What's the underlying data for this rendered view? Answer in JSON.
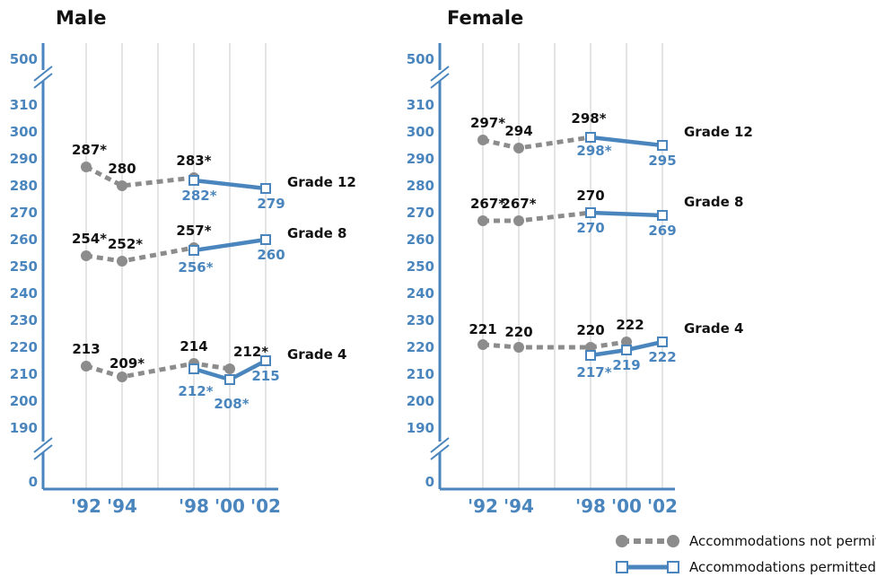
{
  "chart_data": [
    {
      "type": "line",
      "title": "Male",
      "x": [
        "'92",
        "'94",
        "'98",
        "'00",
        "'02"
      ],
      "y_ticks": [
        "500",
        "310",
        "300",
        "290",
        "280",
        "270",
        "260",
        "250",
        "240",
        "230",
        "220",
        "210",
        "200",
        "190",
        "0"
      ],
      "ylim": [
        190,
        310
      ],
      "axis_break": true,
      "grid": "vertical",
      "series": [
        {
          "group": "Grade 12",
          "kind": "not_permitted",
          "points": [
            {
              "x": "'92",
              "y": 287,
              "label": "287*"
            },
            {
              "x": "'94",
              "y": 280,
              "label": "280"
            },
            {
              "x": "'98",
              "y": 283,
              "label": "283*"
            }
          ]
        },
        {
          "group": "Grade 12",
          "kind": "permitted",
          "points": [
            {
              "x": "'98",
              "y": 282,
              "label": "282*"
            },
            {
              "x": "'02",
              "y": 279,
              "label": "279"
            }
          ]
        },
        {
          "group": "Grade 8",
          "kind": "not_permitted",
          "points": [
            {
              "x": "'92",
              "y": 254,
              "label": "254*"
            },
            {
              "x": "'94",
              "y": 252,
              "label": "252*"
            },
            {
              "x": "'98",
              "y": 257,
              "label": "257*"
            }
          ]
        },
        {
          "group": "Grade 8",
          "kind": "permitted",
          "points": [
            {
              "x": "'98",
              "y": 256,
              "label": "256*"
            },
            {
              "x": "'02",
              "y": 260,
              "label": "260"
            }
          ]
        },
        {
          "group": "Grade 4",
          "kind": "not_permitted",
          "points": [
            {
              "x": "'92",
              "y": 213,
              "label": "213"
            },
            {
              "x": "'94",
              "y": 209,
              "label": "209*"
            },
            {
              "x": "'98",
              "y": 214,
              "label": "214"
            },
            {
              "x": "'00",
              "y": 212,
              "label": "212*"
            }
          ]
        },
        {
          "group": "Grade 4",
          "kind": "permitted",
          "points": [
            {
              "x": "'98",
              "y": 212,
              "label": "212*"
            },
            {
              "x": "'00",
              "y": 208,
              "label": "208*"
            },
            {
              "x": "'02",
              "y": 215,
              "label": "215"
            }
          ]
        }
      ],
      "group_labels": [
        "Grade 12",
        "Grade 8",
        "Grade 4"
      ]
    },
    {
      "type": "line",
      "title": "Female",
      "x": [
        "'92",
        "'94",
        "'98",
        "'00",
        "'02"
      ],
      "y_ticks": [
        "500",
        "310",
        "300",
        "290",
        "280",
        "270",
        "260",
        "250",
        "240",
        "230",
        "220",
        "210",
        "200",
        "190",
        "0"
      ],
      "ylim": [
        190,
        310
      ],
      "axis_break": true,
      "grid": "vertical",
      "series": [
        {
          "group": "Grade 12",
          "kind": "not_permitted",
          "points": [
            {
              "x": "'92",
              "y": 297,
              "label": "297*"
            },
            {
              "x": "'94",
              "y": 294,
              "label": "294"
            },
            {
              "x": "'98",
              "y": 298,
              "label": "298*"
            }
          ]
        },
        {
          "group": "Grade 12",
          "kind": "permitted",
          "points": [
            {
              "x": "'98",
              "y": 298,
              "label": "298*"
            },
            {
              "x": "'02",
              "y": 295,
              "label": "295"
            }
          ]
        },
        {
          "group": "Grade 8",
          "kind": "not_permitted",
          "points": [
            {
              "x": "'92",
              "y": 267,
              "label": "267*"
            },
            {
              "x": "'94",
              "y": 267,
              "label": "267*"
            },
            {
              "x": "'98",
              "y": 270,
              "label": "270"
            }
          ]
        },
        {
          "group": "Grade 8",
          "kind": "permitted",
          "points": [
            {
              "x": "'98",
              "y": 270,
              "label": "270"
            },
            {
              "x": "'02",
              "y": 269,
              "label": "269"
            }
          ]
        },
        {
          "group": "Grade 4",
          "kind": "not_permitted",
          "points": [
            {
              "x": "'92",
              "y": 221,
              "label": "221"
            },
            {
              "x": "'94",
              "y": 220,
              "label": "220"
            },
            {
              "x": "'98",
              "y": 220,
              "label": "220"
            },
            {
              "x": "'00",
              "y": 222,
              "label": "222"
            }
          ]
        },
        {
          "group": "Grade 4",
          "kind": "permitted",
          "points": [
            {
              "x": "'98",
              "y": 217,
              "label": "217*"
            },
            {
              "x": "'00",
              "y": 219,
              "label": "219"
            },
            {
              "x": "'02",
              "y": 222,
              "label": "222"
            }
          ]
        }
      ],
      "group_labels": [
        "Grade 12",
        "Grade 8",
        "Grade 4"
      ]
    }
  ],
  "legend": {
    "not_permitted": "Accommodations not permitted",
    "permitted": "Accommodations permitted"
  },
  "colors": {
    "not_permitted": "#8c8c8c",
    "permitted": "#4a86bd",
    "axis": "#4a86bd",
    "grid": "#c8c8c8",
    "text": "#111111"
  }
}
